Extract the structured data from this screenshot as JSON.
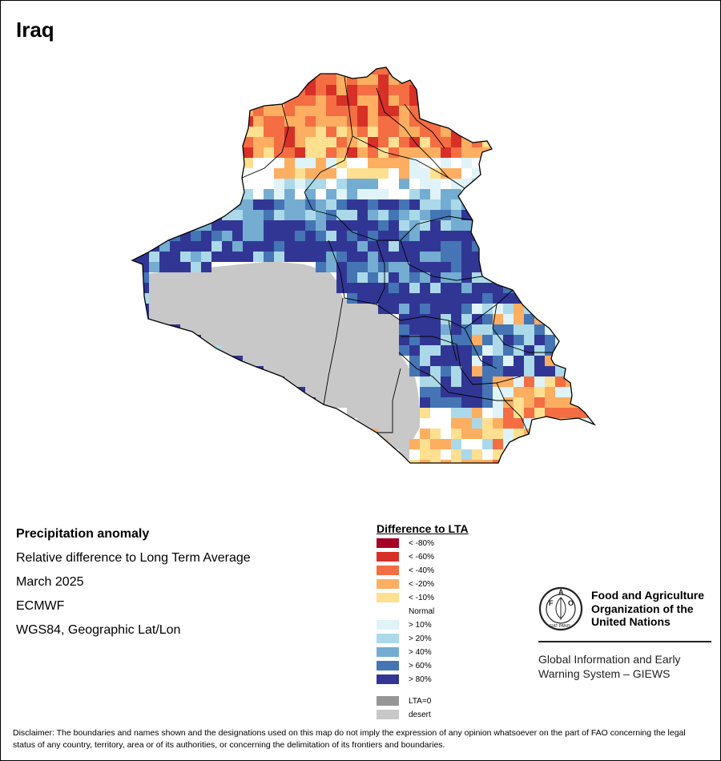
{
  "title": "Iraq",
  "info": {
    "heading": "Precipitation anomaly",
    "subtitle": "Relative difference to Long Term Average",
    "period": "March 2025",
    "source": "ECMWF",
    "projection": "WGS84, Geographic Lat/Lon"
  },
  "legend": {
    "title": "Difference to LTA",
    "items": [
      {
        "label": "< -80%",
        "color": "#a50026"
      },
      {
        "label": "< -60%",
        "color": "#d73027"
      },
      {
        "label": "< -40%",
        "color": "#f46d43"
      },
      {
        "label": "< -20%",
        "color": "#fdae61"
      },
      {
        "label": "< -10%",
        "color": "#fee090"
      },
      {
        "label": "Normal",
        "color": "#ffffff"
      },
      {
        "label": "> 10%",
        "color": "#e0f3f8"
      },
      {
        "label": "> 20%",
        "color": "#abd9e9"
      },
      {
        "label": "> 40%",
        "color": "#74add1"
      },
      {
        "label": "> 60%",
        "color": "#4575b4"
      },
      {
        "label": "> 80%",
        "color": "#313695"
      }
    ],
    "extra": [
      {
        "label": "LTA=0",
        "color": "#969696"
      },
      {
        "label": "desert",
        "color": "#c8c8c8"
      }
    ]
  },
  "fao": {
    "org_lines": [
      "Food and Agriculture",
      "Organization of the",
      "United Nations"
    ],
    "giews_lines": [
      "Global Information and Early",
      "Warning System – GIEWS"
    ],
    "logo_letters": [
      "F",
      "A",
      "O"
    ],
    "logo_motto": "FIAT PANIS"
  },
  "disclaimer": "Disclaimer: The boundaries and names shown and the designations used on this map do not imply the expression of any opinion whatsoever on the part of FAO concerning the legal status of any country, territory, area or of its authorities, or concerning the delimitation of its frontiers and boundaries."
}
